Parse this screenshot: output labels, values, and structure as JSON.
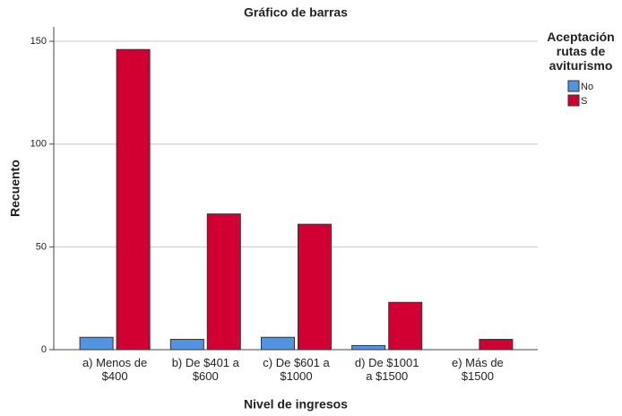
{
  "chart_data": {
    "type": "bar",
    "title": "Gráfico de barras",
    "x_label": "Nivel de ingresos",
    "y_label": "Recuento",
    "categories": [
      "a) Menos de\n$400",
      "b) De $401 a\n$600",
      "c) De $601 a\n$1000",
      "d) De $1001\na $1500",
      "e) Más de\n$1500"
    ],
    "series": [
      {
        "name": "No",
        "color": "#5294e2",
        "values": [
          6,
          5,
          6,
          2,
          0
        ]
      },
      {
        "name": "S",
        "color": "#d20032",
        "values": [
          146,
          66,
          61,
          23,
          5
        ]
      }
    ],
    "legend_title": "Aceptación\nrutas de\naviturismo",
    "legend_position": "right",
    "ylim": [
      0,
      157
    ],
    "yticks": [
      0,
      50,
      100,
      150
    ],
    "grid": true
  }
}
